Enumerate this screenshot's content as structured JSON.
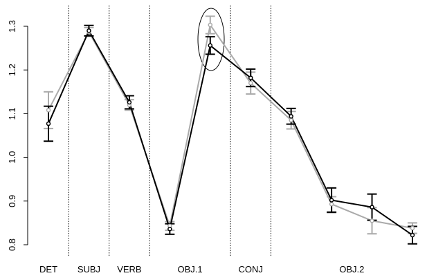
{
  "chart_data": {
    "type": "line",
    "x": [
      1,
      2,
      3,
      4,
      5,
      6,
      7,
      8,
      9,
      10
    ],
    "xlim": [
      0.5,
      10.3
    ],
    "xticks": [
      {
        "value": 1,
        "label": "DET"
      },
      {
        "value": 2,
        "label": "SUBJ"
      },
      {
        "value": 3,
        "label": "VERB"
      },
      {
        "value": 4.5,
        "label": "OBJ.1"
      },
      {
        "value": 6,
        "label": "CONJ"
      },
      {
        "value": 8.5,
        "label": "OBJ.2"
      }
    ],
    "vlines": [
      1.5,
      2.5,
      3.5,
      5.5,
      6.5
    ],
    "ylim": [
      0.8,
      1.3
    ],
    "yticks": [
      0.8,
      0.9,
      {
        "value": 1,
        "label": "1.0"
      },
      1.1,
      1.2,
      1.3
    ],
    "series": [
      {
        "color": "#aaaaaa",
        "values": [
          1.108,
          1.287,
          1.12,
          0.843,
          1.303,
          1.17,
          1.085,
          0.893,
          0.855,
          0.838
        ],
        "errors": [
          0.042,
          0.01,
          0.012,
          0.01,
          0.02,
          0.025,
          0.02,
          0.017,
          0.03,
          0.012
        ]
      },
      {
        "color": "#000000",
        "values": [
          1.077,
          1.29,
          1.126,
          0.836,
          1.256,
          1.182,
          1.094,
          0.902,
          0.886,
          0.822
        ],
        "errors": [
          0.04,
          0.012,
          0.015,
          0.012,
          0.02,
          0.02,
          0.018,
          0.028,
          0.03,
          0.02
        ]
      }
    ]
  }
}
